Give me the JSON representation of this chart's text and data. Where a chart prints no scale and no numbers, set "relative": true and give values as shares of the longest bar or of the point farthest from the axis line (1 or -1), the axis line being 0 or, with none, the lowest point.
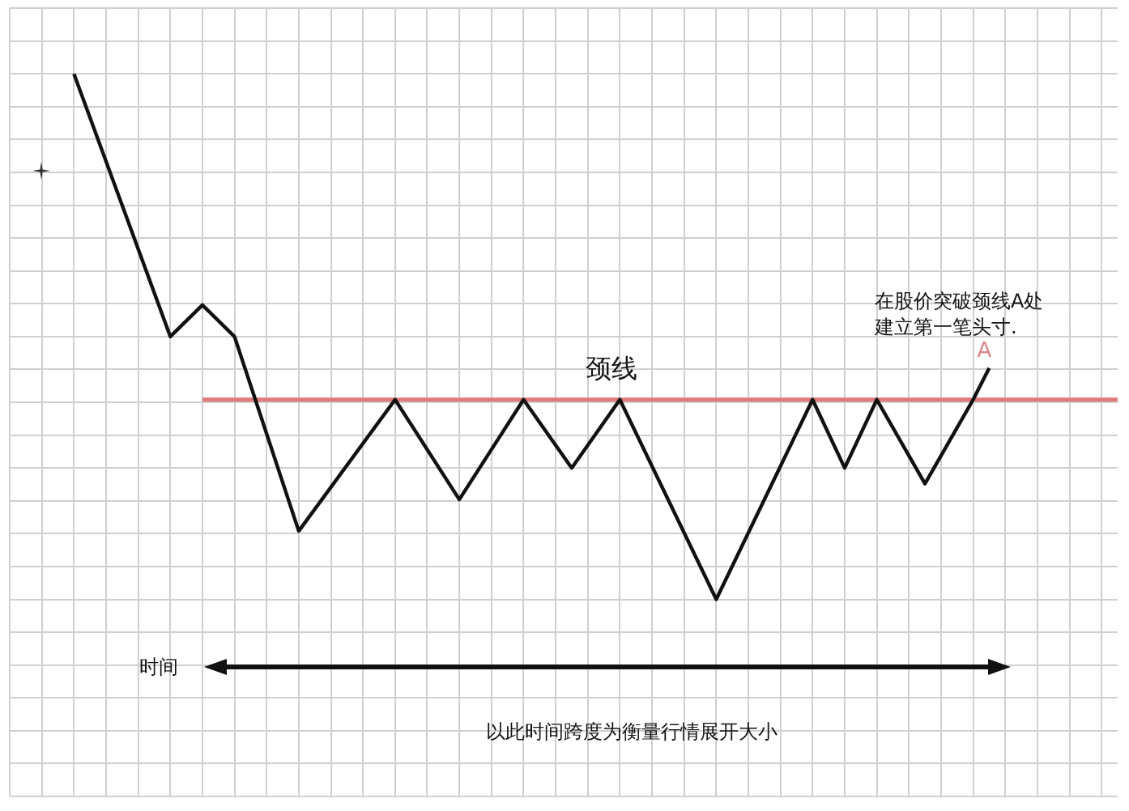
{
  "chart_data": {
    "type": "line",
    "relative": true,
    "categories": [
      null,
      null,
      null,
      null,
      null,
      null,
      null,
      null,
      null,
      null,
      null,
      null,
      null,
      null,
      null,
      null,
      null,
      null,
      null,
      null,
      null,
      null,
      null,
      null,
      null,
      null,
      null,
      null,
      null,
      null,
      null,
      null,
      null,
      null,
      null,
      null,
      null,
      null,
      null,
      null,
      null,
      null,
      null,
      null,
      null,
      null,
      null,
      null,
      null,
      null,
      null,
      null,
      null,
      null,
      null,
      null,
      null,
      null,
      null,
      null,
      null,
      null,
      null,
      null,
      null,
      null,
      null,
      null,
      null,
      null
    ],
    "series": [
      {
        "color": "#111111",
        "values": [
          null,
          null,
          null,
          null,
          1,
          null,
          null,
          null,
          null,
          null,
          0.5,
          null,
          0.56,
          null,
          0.5,
          null,
          null,
          null,
          0.13,
          null,
          null,
          null,
          null,
          null,
          0.38,
          null,
          null,
          null,
          0.19,
          null,
          null,
          null,
          0.38,
          null,
          null,
          0.25,
          null,
          null,
          0.38,
          null,
          null,
          null,
          null,
          null,
          0,
          null,
          null,
          null,
          null,
          null,
          0.38,
          null,
          0.25,
          null,
          0.38,
          null,
          null,
          0.22,
          null,
          null,
          0.38,
          0.44,
          null,
          null,
          null,
          null,
          null,
          null,
          null,
          null
        ]
      }
    ],
    "ref_lines": [
      {
        "axis": "y",
        "value": 0.38,
        "label": "颈线",
        "color": "#e07a7a"
      }
    ],
    "annotations": [
      {
        "text": "A",
        "y": 0.44
      },
      "在股价突破颈线A处建立第一笔头寸.",
      "时间",
      "以此时间跨度为衡量行情展开大小"
    ],
    "grid": true,
    "legend": false,
    "marker": "none",
    "line_style": "solid"
  }
}
